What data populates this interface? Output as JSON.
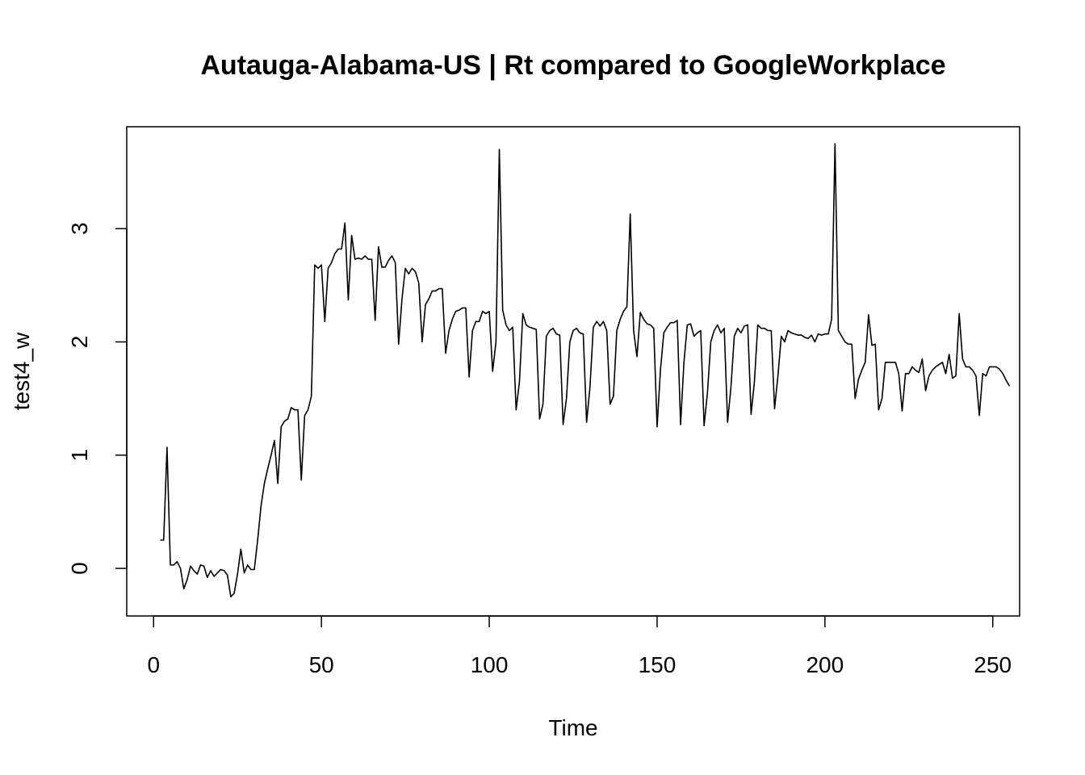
{
  "chart_data": {
    "type": "line",
    "title": "Autauga-Alabama-US | Rt compared to GoogleWorkplace",
    "xlabel": "Time",
    "ylabel": "test4_w",
    "xlim": [
      -8,
      258
    ],
    "ylim": [
      -0.42,
      3.9
    ],
    "xticks": [
      0,
      50,
      100,
      150,
      200,
      250
    ],
    "yticks": [
      0,
      1,
      2,
      3
    ],
    "grid": false,
    "color": "#000000",
    "x_start": 2,
    "values": [
      0.25,
      0.25,
      1.07,
      0.03,
      0.03,
      0.06,
      0.0,
      -0.18,
      -0.1,
      0.02,
      -0.02,
      -0.05,
      0.03,
      0.02,
      -0.08,
      -0.02,
      -0.07,
      -0.04,
      -0.01,
      -0.02,
      -0.06,
      -0.25,
      -0.22,
      -0.05,
      0.17,
      -0.04,
      0.03,
      -0.01,
      -0.01,
      0.25,
      0.55,
      0.75,
      0.88,
      1.0,
      1.13,
      0.75,
      1.25,
      1.3,
      1.32,
      1.42,
      1.4,
      1.4,
      0.78,
      1.35,
      1.4,
      1.52,
      2.68,
      2.65,
      2.68,
      2.18,
      2.65,
      2.7,
      2.78,
      2.82,
      2.82,
      3.05,
      2.37,
      2.94,
      2.73,
      2.74,
      2.73,
      2.76,
      2.73,
      2.73,
      2.19,
      2.84,
      2.66,
      2.66,
      2.72,
      2.76,
      2.7,
      1.98,
      2.38,
      2.65,
      2.6,
      2.65,
      2.62,
      2.52,
      2.0,
      2.33,
      2.38,
      2.45,
      2.45,
      2.47,
      2.47,
      1.9,
      2.1,
      2.2,
      2.27,
      2.28,
      2.3,
      2.3,
      1.69,
      2.1,
      2.18,
      2.18,
      2.27,
      2.25,
      2.27,
      1.74,
      2.0,
      3.7,
      2.28,
      2.15,
      2.1,
      2.13,
      1.4,
      1.65,
      2.25,
      2.15,
      2.13,
      2.12,
      2.11,
      1.32,
      1.45,
      2.05,
      2.1,
      2.12,
      2.07,
      2.06,
      1.27,
      1.5,
      2.0,
      2.1,
      2.12,
      2.08,
      2.07,
      1.29,
      1.6,
      2.13,
      2.18,
      2.14,
      2.18,
      2.1,
      1.45,
      1.52,
      2.1,
      2.2,
      2.27,
      2.31,
      3.13,
      2.1,
      1.87,
      2.26,
      2.2,
      2.16,
      2.15,
      2.12,
      1.25,
      1.75,
      2.08,
      2.13,
      2.17,
      2.17,
      2.19,
      1.27,
      1.82,
      2.15,
      2.16,
      2.05,
      2.08,
      2.1,
      1.26,
      1.55,
      2.0,
      2.1,
      2.15,
      2.08,
      2.12,
      1.29,
      1.6,
      2.05,
      2.12,
      2.08,
      2.14,
      2.15,
      1.36,
      1.65,
      2.15,
      2.12,
      2.12,
      2.1,
      2.1,
      1.41,
      1.7,
      2.05,
      2.0,
      2.1,
      2.08,
      2.07,
      2.06,
      2.06,
      2.04,
      2.03,
      2.06,
      2.0,
      2.07,
      2.06,
      2.07,
      2.07,
      2.2,
      3.75,
      2.1,
      2.05,
      2.0,
      1.98,
      1.98,
      1.5,
      1.67,
      1.75,
      1.82,
      2.24,
      1.97,
      1.98,
      1.4,
      1.5,
      1.82,
      1.82,
      1.82,
      1.82,
      1.72,
      1.39,
      1.72,
      1.72,
      1.78,
      1.75,
      1.73,
      1.85,
      1.57,
      1.7,
      1.75,
      1.78,
      1.8,
      1.82,
      1.72,
      1.89,
      1.68,
      1.7,
      2.25,
      1.85,
      1.78,
      1.78,
      1.75,
      1.7,
      1.35,
      1.72,
      1.7,
      1.78,
      1.78,
      1.78,
      1.76,
      1.72,
      1.66,
      1.61
    ]
  }
}
